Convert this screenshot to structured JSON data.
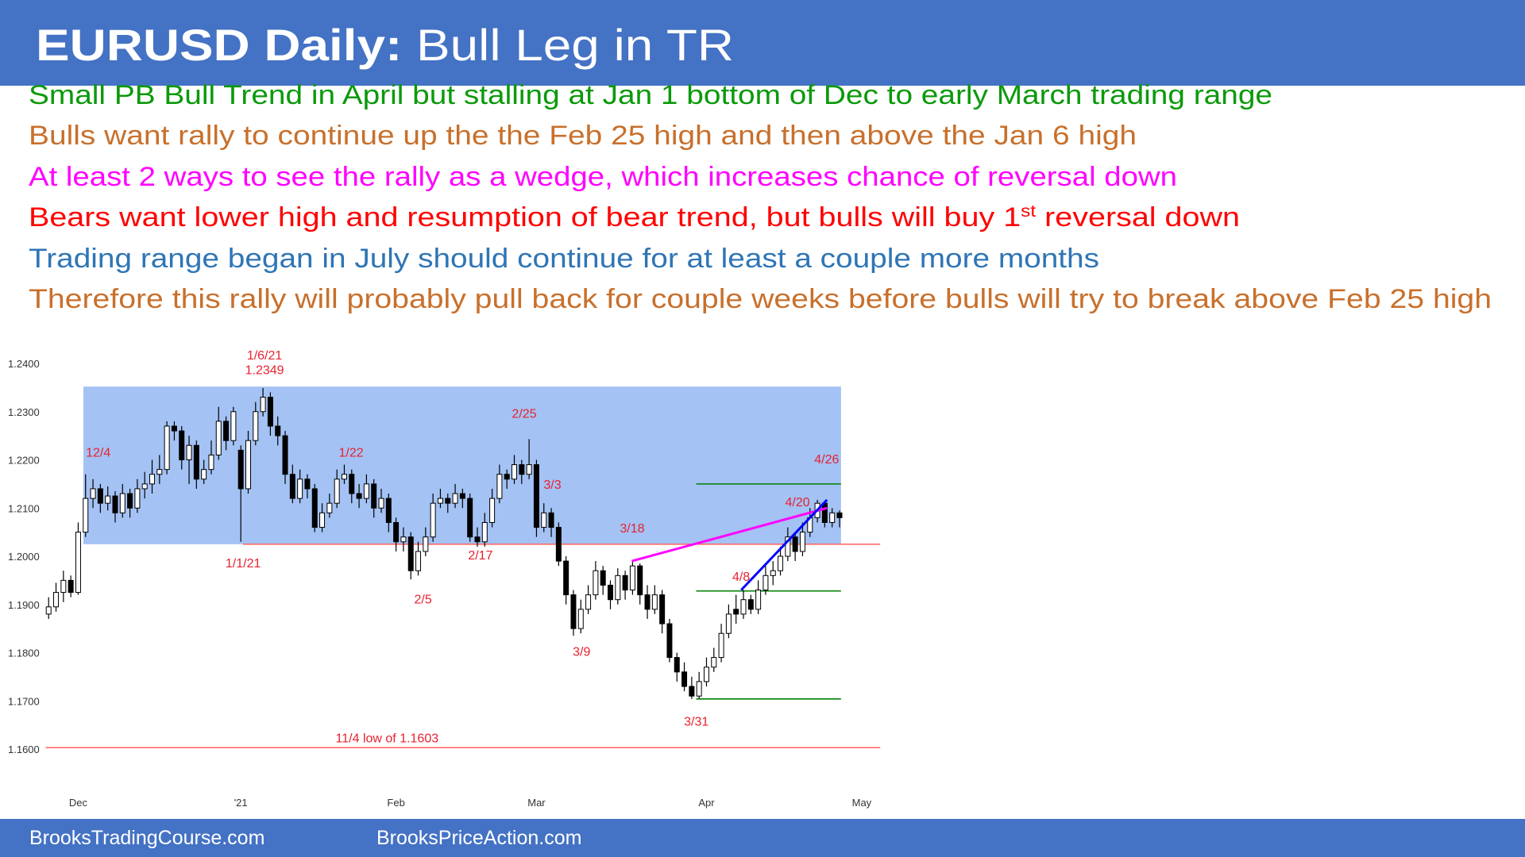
{
  "slide": {
    "title_bold": "EURUSD Daily:",
    "title_rest": "Bull Leg in TR",
    "bullets": [
      {
        "text": "Small PB Bull Trend in April but stalling at Jan 1 bottom of Dec to early March trading range",
        "color": "#0a9a0a"
      },
      {
        "text": "Bulls want rally to continue up the the Feb 25 high and then above the Jan 6 high",
        "color": "#c8702c"
      },
      {
        "text": "At least 2 ways to see the rally as a wedge, which increases chance of reversal down",
        "color": "#ff00ff"
      },
      {
        "text": "Bears want lower high and resumption of bear trend, but bulls will buy 1",
        "sup": "st",
        "tail": " reversal down",
        "color": "#ff0000"
      },
      {
        "text": "Trading range began in July should continue for at least a couple more months",
        "color": "#2e75b6"
      },
      {
        "text": "Therefore this rally will probably pull back for couple weeks before bulls will try to break above Feb 25 high",
        "color": "#c8702c"
      }
    ],
    "footer": [
      "BrooksTradingCourse.com",
      "BrooksPriceAction.com"
    ]
  },
  "chart_data": {
    "type": "candlestick",
    "categories": [
      null,
      null,
      null,
      null,
      "Dec",
      null,
      null,
      null,
      null,
      null,
      null,
      null,
      null,
      null,
      null,
      null,
      null,
      null,
      null,
      null,
      null,
      null,
      null,
      null,
      null,
      null,
      "'21",
      null,
      null,
      null,
      null,
      null,
      null,
      null,
      null,
      null,
      null,
      null,
      null,
      null,
      null,
      null,
      null,
      null,
      null,
      null,
      null,
      "Feb",
      null,
      null,
      null,
      null,
      null,
      null,
      null,
      null,
      null,
      null,
      null,
      null,
      null,
      null,
      null,
      null,
      null,
      null,
      "Mar",
      null,
      null,
      null,
      null,
      null,
      null,
      null,
      null,
      null,
      null,
      null,
      null,
      null,
      null,
      null,
      null,
      null,
      null,
      null,
      null,
      null,
      null,
      "Apr",
      null,
      null,
      null,
      null,
      null,
      null,
      null,
      null,
      null,
      null,
      null,
      null,
      null,
      null,
      null,
      null,
      null,
      null,
      null,
      null,
      "May",
      null
    ],
    "candles": [
      [
        1.188,
        1.1915,
        1.187,
        1.1895
      ],
      [
        1.1895,
        1.1945,
        1.1885,
        1.1925
      ],
      [
        1.1925,
        1.197,
        1.1905,
        1.195
      ],
      [
        1.195,
        1.196,
        1.1915,
        1.1925
      ],
      [
        1.1925,
        1.207,
        1.192,
        1.205
      ],
      [
        1.205,
        1.217,
        1.204,
        1.212
      ],
      [
        1.212,
        1.216,
        1.21,
        1.214
      ],
      [
        1.214,
        1.215,
        1.209,
        1.211
      ],
      [
        1.211,
        1.2145,
        1.2095,
        1.2125
      ],
      [
        1.2125,
        1.2135,
        1.207,
        1.209
      ],
      [
        1.209,
        1.215,
        1.208,
        1.213
      ],
      [
        1.213,
        1.214,
        1.208,
        1.21
      ],
      [
        1.21,
        1.216,
        1.209,
        1.214
      ],
      [
        1.214,
        1.2175,
        1.212,
        1.215
      ],
      [
        1.215,
        1.22,
        1.213,
        1.217
      ],
      [
        1.217,
        1.221,
        1.215,
        1.218
      ],
      [
        1.218,
        1.228,
        1.217,
        1.227
      ],
      [
        1.227,
        1.228,
        1.224,
        1.226
      ],
      [
        1.226,
        1.227,
        1.218,
        1.22
      ],
      [
        1.22,
        1.225,
        1.215,
        1.223
      ],
      [
        1.223,
        1.224,
        1.214,
        1.216
      ],
      [
        1.216,
        1.22,
        1.215,
        1.218
      ],
      [
        1.218,
        1.224,
        1.217,
        1.221
      ],
      [
        1.221,
        1.231,
        1.22,
        1.228
      ],
      [
        1.228,
        1.229,
        1.222,
        1.224
      ],
      [
        1.224,
        1.231,
        1.223,
        1.23
      ],
      [
        1.222,
        1.223,
        1.203,
        1.214
      ],
      [
        1.214,
        1.226,
        1.213,
        1.224
      ],
      [
        1.224,
        1.232,
        1.223,
        1.23
      ],
      [
        1.23,
        1.2349,
        1.229,
        1.233
      ],
      [
        1.233,
        1.234,
        1.225,
        1.227
      ],
      [
        1.227,
        1.229,
        1.223,
        1.225
      ],
      [
        1.225,
        1.226,
        1.215,
        1.217
      ],
      [
        1.217,
        1.219,
        1.211,
        1.212
      ],
      [
        1.212,
        1.218,
        1.211,
        1.216
      ],
      [
        1.216,
        1.217,
        1.212,
        1.214
      ],
      [
        1.214,
        1.215,
        1.205,
        1.206
      ],
      [
        1.206,
        1.211,
        1.205,
        1.209
      ],
      [
        1.209,
        1.213,
        1.208,
        1.211
      ],
      [
        1.211,
        1.218,
        1.21,
        1.216
      ],
      [
        1.216,
        1.219,
        1.215,
        1.217
      ],
      [
        1.217,
        1.218,
        1.211,
        1.213
      ],
      [
        1.213,
        1.215,
        1.21,
        1.212
      ],
      [
        1.212,
        1.217,
        1.211,
        1.215
      ],
      [
        1.215,
        1.216,
        1.208,
        1.21
      ],
      [
        1.21,
        1.214,
        1.209,
        1.212
      ],
      [
        1.212,
        1.213,
        1.205,
        1.207
      ],
      [
        1.207,
        1.208,
        1.201,
        1.203
      ],
      [
        1.203,
        1.206,
        1.201,
        1.204
      ],
      [
        1.204,
        1.205,
        1.1952,
        1.197
      ],
      [
        1.197,
        1.203,
        1.196,
        1.201
      ],
      [
        1.201,
        1.206,
        1.2,
        1.204
      ],
      [
        1.204,
        1.213,
        1.203,
        1.211
      ],
      [
        1.211,
        1.214,
        1.21,
        1.212
      ],
      [
        1.212,
        1.213,
        1.209,
        1.211
      ],
      [
        1.211,
        1.215,
        1.21,
        1.213
      ],
      [
        1.213,
        1.214,
        1.21,
        1.212
      ],
      [
        1.212,
        1.213,
        1.203,
        1.204
      ],
      [
        1.204,
        1.206,
        1.202,
        1.203
      ],
      [
        1.203,
        1.209,
        1.202,
        1.207
      ],
      [
        1.207,
        1.214,
        1.206,
        1.212
      ],
      [
        1.212,
        1.219,
        1.211,
        1.217
      ],
      [
        1.217,
        1.218,
        1.214,
        1.216
      ],
      [
        1.216,
        1.221,
        1.215,
        1.219
      ],
      [
        1.219,
        1.22,
        1.215,
        1.217
      ],
      [
        1.217,
        1.2243,
        1.216,
        1.219
      ],
      [
        1.219,
        1.22,
        1.204,
        1.206
      ],
      [
        1.206,
        1.211,
        1.205,
        1.209
      ],
      [
        1.209,
        1.21,
        1.204,
        1.206
      ],
      [
        1.206,
        1.207,
        1.198,
        1.199
      ],
      [
        1.199,
        1.2,
        1.19,
        1.192
      ],
      [
        1.192,
        1.193,
        1.1835,
        1.185
      ],
      [
        1.185,
        1.191,
        1.184,
        1.189
      ],
      [
        1.189,
        1.194,
        1.188,
        1.192
      ],
      [
        1.192,
        1.199,
        1.191,
        1.197
      ],
      [
        1.197,
        1.198,
        1.192,
        1.194
      ],
      [
        1.194,
        1.195,
        1.189,
        1.191
      ],
      [
        1.191,
        1.1975,
        1.19,
        1.196
      ],
      [
        1.196,
        1.197,
        1.191,
        1.193
      ],
      [
        1.193,
        1.199,
        1.192,
        1.198
      ],
      [
        1.198,
        1.1985,
        1.19,
        1.192
      ],
      [
        1.192,
        1.194,
        1.187,
        1.189
      ],
      [
        1.189,
        1.194,
        1.188,
        1.192
      ],
      [
        1.192,
        1.193,
        1.184,
        1.186
      ],
      [
        1.186,
        1.187,
        1.178,
        1.179
      ],
      [
        1.179,
        1.18,
        1.174,
        1.176
      ],
      [
        1.176,
        1.178,
        1.172,
        1.173
      ],
      [
        1.173,
        1.175,
        1.1704,
        1.171
      ],
      [
        1.171,
        1.176,
        1.1705,
        1.174
      ],
      [
        1.174,
        1.179,
        1.173,
        1.177
      ],
      [
        1.177,
        1.181,
        1.176,
        1.179
      ],
      [
        1.179,
        1.186,
        1.178,
        1.184
      ],
      [
        1.184,
        1.19,
        1.183,
        1.188
      ],
      [
        1.189,
        1.192,
        1.186,
        1.188
      ],
      [
        1.188,
        1.193,
        1.187,
        1.191
      ],
      [
        1.191,
        1.192,
        1.188,
        1.189
      ],
      [
        1.189,
        1.195,
        1.188,
        1.193
      ],
      [
        1.193,
        1.198,
        1.192,
        1.196
      ],
      [
        1.196,
        1.199,
        1.194,
        1.197
      ],
      [
        1.197,
        1.202,
        1.196,
        1.2
      ],
      [
        1.2,
        1.206,
        1.199,
        1.204
      ],
      [
        1.204,
        1.205,
        1.199,
        1.201
      ],
      [
        1.201,
        1.207,
        1.2,
        1.205
      ],
      [
        1.205,
        1.21,
        1.204,
        1.208
      ],
      [
        1.208,
        1.2117,
        1.207,
        1.211
      ],
      [
        1.211,
        1.2115,
        1.206,
        1.207
      ],
      [
        1.207,
        1.21,
        1.206,
        1.209
      ],
      [
        1.209,
        1.2095,
        1.206,
        1.208
      ],
      null,
      null,
      null,
      null
    ],
    "up_color": "#ffffff",
    "down_color": "#000000",
    "ylim": [
      1.156,
      1.244
    ],
    "yticks": [
      {
        "value": 1.24,
        "label": "1.2400"
      },
      {
        "value": 1.23,
        "label": "1.2300"
      },
      {
        "value": 1.22,
        "label": "1.2200"
      },
      {
        "value": 1.21,
        "label": "1.2100"
      },
      {
        "value": 1.2,
        "label": "1.2000"
      },
      {
        "value": 1.19,
        "label": "1.1900"
      },
      {
        "value": 1.18,
        "label": "1.1800"
      },
      {
        "value": 1.17,
        "label": "1.1700"
      },
      {
        "value": 1.16,
        "label": "1.1600"
      }
    ],
    "grid": false,
    "range_box": {
      "values": [
        1.2025,
        1.2352
      ],
      "color": "#a4c2f4"
    },
    "levels": [
      {
        "value": 1.2025,
        "color": "#ff6b6b"
      },
      {
        "value": 1.1603,
        "color": "#ff6b6b"
      },
      {
        "value": 1.215,
        "color": "#008000"
      },
      {
        "value": 1.1928,
        "color": "#008000"
      },
      {
        "value": 1.1704,
        "color": "#008000"
      }
    ],
    "trendlines": [
      {
        "values": [
          1.199,
          1.21
        ],
        "color": "#ff00ff"
      },
      {
        "values": [
          1.193,
          1.2117
        ],
        "color": "#0000ff"
      }
    ],
    "annotation_color": "#e8212f",
    "annotations": [
      "1/6/21",
      "1.2349",
      "12/4",
      "1/22",
      "2/25",
      "3/3",
      "3/18",
      "4/26",
      "4/20",
      "4/8",
      "1/1/21",
      "2/5",
      "2/17",
      "3/9",
      "3/31",
      "11/4 low of 1.1603"
    ]
  }
}
